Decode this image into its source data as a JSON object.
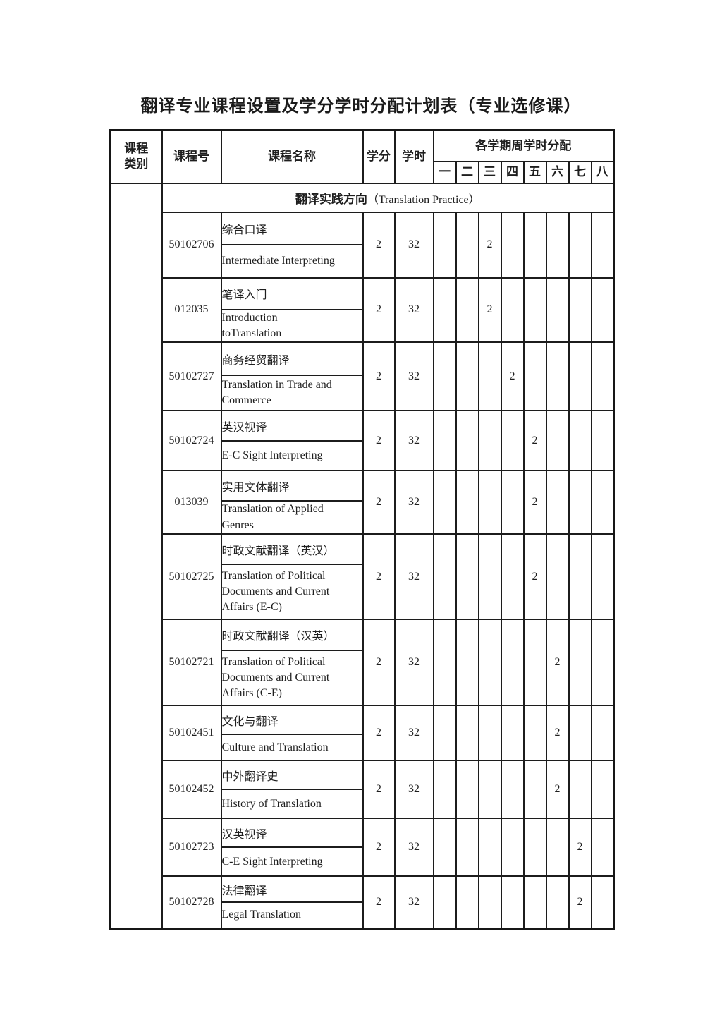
{
  "colors": {
    "background": "#ffffff",
    "text": "#1a1a1a",
    "border": "#1a1a1a"
  },
  "page": {
    "title": "翻译专业课程设置及学分学时分配计划表（专业选修课）"
  },
  "table": {
    "headers": {
      "category": "课程类别",
      "course_no": "课程号",
      "course_name": "课程名称",
      "credits": "学分",
      "hours": "学时",
      "semester_group": "各学期周学时分配",
      "semesters": [
        "一",
        "二",
        "三",
        "四",
        "五",
        "六",
        "七",
        "八"
      ]
    },
    "section_zh": "翻译实践方向",
    "section_en": "（Translation Practice）",
    "courses": [
      {
        "code": "50102706",
        "name_zh": "综合口译",
        "name_en": "Intermediate Interpreting",
        "credits": "2",
        "hours": "32",
        "semester": 3,
        "weekly_hours": "2"
      },
      {
        "code": "012035",
        "name_zh": "笔译入门",
        "name_en": "Introduction\ntoTranslation",
        "credits": "2",
        "hours": "32",
        "semester": 3,
        "weekly_hours": "2"
      },
      {
        "code": "50102727",
        "name_zh": "商务经贸翻译",
        "name_en": "Translation in Trade and\nCommerce",
        "credits": "2",
        "hours": "32",
        "semester": 4,
        "weekly_hours": "2"
      },
      {
        "code": "50102724",
        "name_zh": "英汉视译",
        "name_en": "E-C Sight Interpreting",
        "credits": "2",
        "hours": "32",
        "semester": 5,
        "weekly_hours": "2"
      },
      {
        "code": "013039",
        "name_zh": "实用文体翻译",
        "name_en": "Translation of Applied\nGenres",
        "credits": "2",
        "hours": "32",
        "semester": 5,
        "weekly_hours": "2"
      },
      {
        "code": "50102725",
        "name_zh": "时政文献翻译（英汉）",
        "name_en": "Translation of Political\nDocuments and Current\nAffairs (E-C)",
        "credits": "2",
        "hours": "32",
        "semester": 5,
        "weekly_hours": "2"
      },
      {
        "code": "50102721",
        "name_zh": "时政文献翻译（汉英）",
        "name_en": "Translation of Political\nDocuments and Current\nAffairs (C-E)",
        "credits": "2",
        "hours": "32",
        "semester": 6,
        "weekly_hours": "2"
      },
      {
        "code": "50102451",
        "name_zh": "文化与翻译",
        "name_en": "Culture and Translation",
        "credits": "2",
        "hours": "32",
        "semester": 6,
        "weekly_hours": "2"
      },
      {
        "code": "50102452",
        "name_zh": "中外翻译史",
        "name_en": "History of Translation",
        "credits": "2",
        "hours": "32",
        "semester": 6,
        "weekly_hours": "2"
      },
      {
        "code": "50102723",
        "name_zh": "汉英视译",
        "name_en": "C-E Sight Interpreting",
        "credits": "2",
        "hours": "32",
        "semester": 7,
        "weekly_hours": "2"
      },
      {
        "code": "50102728",
        "name_zh": "法律翻译",
        "name_en": "Legal Translation",
        "credits": "2",
        "hours": "32",
        "semester": 7,
        "weekly_hours": "2"
      }
    ]
  }
}
